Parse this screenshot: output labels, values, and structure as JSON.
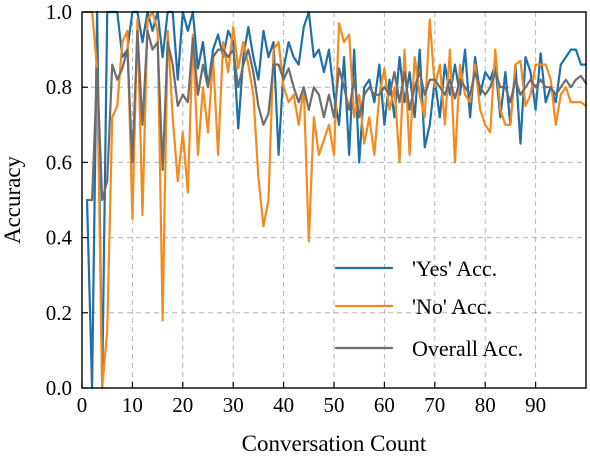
{
  "chart_data": {
    "type": "line",
    "xlabel": "Conversation Count",
    "ylabel": "Accuracy",
    "xlim": [
      0,
      100
    ],
    "ylim": [
      0,
      1
    ],
    "xticks": [
      0,
      10,
      20,
      30,
      40,
      50,
      60,
      70,
      80,
      90
    ],
    "yticks": [
      0.0,
      0.2,
      0.4,
      0.6,
      0.8,
      1.0
    ],
    "xtick_labels": [
      "0",
      "10",
      "20",
      "30",
      "40",
      "50",
      "60",
      "70",
      "80",
      "90"
    ],
    "ytick_labels": [
      "0.0",
      "0.2",
      "0.4",
      "0.6",
      "0.8",
      "1.0"
    ],
    "grid": true,
    "legend_position": "lower-right",
    "x": [
      1,
      2,
      3,
      4,
      5,
      6,
      7,
      8,
      9,
      10,
      11,
      12,
      13,
      14,
      15,
      16,
      17,
      18,
      19,
      20,
      21,
      22,
      23,
      24,
      25,
      26,
      27,
      28,
      29,
      30,
      31,
      32,
      33,
      34,
      35,
      36,
      37,
      38,
      39,
      40,
      41,
      42,
      43,
      44,
      45,
      46,
      47,
      48,
      49,
      50,
      51,
      52,
      53,
      54,
      55,
      56,
      57,
      58,
      59,
      60,
      61,
      62,
      63,
      64,
      65,
      66,
      67,
      68,
      69,
      70,
      71,
      72,
      73,
      74,
      75,
      76,
      77,
      78,
      79,
      80,
      81,
      82,
      83,
      84,
      85,
      86,
      87,
      88,
      89,
      90,
      91,
      92,
      93,
      94,
      95,
      96,
      97,
      98,
      99,
      100
    ],
    "series": [
      {
        "name": "'Yes' Acc.",
        "color": "#1f6fa8",
        "values": [
          0.5,
          0.0,
          1.0,
          0.0,
          1.0,
          1.0,
          1.0,
          0.88,
          0.9,
          1.0,
          1.0,
          0.92,
          1.0,
          0.95,
          1.0,
          0.88,
          1.0,
          1.0,
          0.82,
          1.0,
          0.95,
          1.0,
          0.85,
          0.92,
          0.8,
          0.9,
          0.94,
          0.88,
          0.95,
          0.92,
          0.69,
          0.88,
          0.96,
          0.88,
          0.82,
          0.95,
          0.88,
          0.92,
          0.62,
          0.85,
          0.92,
          0.88,
          0.86,
          0.96,
          1.0,
          0.88,
          0.9,
          0.84,
          0.9,
          0.78,
          0.7,
          0.88,
          0.62,
          0.9,
          0.6,
          0.8,
          0.82,
          0.76,
          0.86,
          0.7,
          0.82,
          0.72,
          0.88,
          0.76,
          0.84,
          0.72,
          0.9,
          0.64,
          0.7,
          0.82,
          0.72,
          0.86,
          0.78,
          0.86,
          0.78,
          0.9,
          0.72,
          0.88,
          0.78,
          0.84,
          0.82,
          0.86,
          0.72,
          0.84,
          0.7,
          0.86,
          0.65,
          0.88,
          0.84,
          0.74,
          0.89,
          0.76,
          0.8,
          0.76,
          0.86,
          0.88,
          0.9,
          0.9,
          0.86,
          0.86
        ]
      },
      {
        "name": "'No' Acc.",
        "color": "#f58a1f",
        "values": [
          1.0,
          1.0,
          0.85,
          0.0,
          0.15,
          0.72,
          0.75,
          0.92,
          0.95,
          0.45,
          0.98,
          0.46,
          0.98,
          1.0,
          0.95,
          0.18,
          0.95,
          0.72,
          0.55,
          0.68,
          0.52,
          0.94,
          0.62,
          0.8,
          0.68,
          0.88,
          0.62,
          0.92,
          0.84,
          0.96,
          0.85,
          0.92,
          0.86,
          0.78,
          0.56,
          0.43,
          0.5,
          0.9,
          0.92,
          0.8,
          0.76,
          0.78,
          0.7,
          0.8,
          0.39,
          0.72,
          0.62,
          0.66,
          0.7,
          0.62,
          0.97,
          0.92,
          0.94,
          0.72,
          0.78,
          0.65,
          0.72,
          0.62,
          0.78,
          0.85,
          0.74,
          0.8,
          0.6,
          0.9,
          0.62,
          0.88,
          0.78,
          0.72,
          0.98,
          0.8,
          0.86,
          0.7,
          0.9,
          0.6,
          0.86,
          0.78,
          0.76,
          0.86,
          0.74,
          0.7,
          0.68,
          0.9,
          0.74,
          0.7,
          0.7,
          0.86,
          0.87,
          0.75,
          0.78,
          0.86,
          0.86,
          0.86,
          0.82,
          0.7,
          0.78,
          0.8,
          0.76,
          0.76,
          0.76,
          0.75
        ]
      },
      {
        "name": "Overall Acc.",
        "color": "#6d6d6d",
        "values": [
          0.5,
          0.5,
          0.85,
          0.5,
          0.55,
          0.86,
          0.82,
          0.85,
          0.9,
          0.6,
          0.95,
          0.7,
          0.95,
          0.9,
          0.92,
          0.58,
          0.92,
          0.86,
          0.75,
          0.78,
          0.76,
          0.93,
          0.78,
          0.86,
          0.8,
          0.88,
          0.9,
          0.9,
          0.88,
          0.9,
          0.8,
          0.86,
          0.9,
          0.84,
          0.75,
          0.7,
          0.73,
          0.86,
          0.86,
          0.82,
          0.85,
          0.8,
          0.76,
          0.8,
          0.74,
          0.8,
          0.78,
          0.72,
          0.78,
          0.72,
          0.85,
          0.8,
          0.74,
          0.82,
          0.72,
          0.78,
          0.8,
          0.78,
          0.78,
          0.8,
          0.78,
          0.84,
          0.76,
          0.84,
          0.74,
          0.8,
          0.84,
          0.78,
          0.82,
          0.82,
          0.8,
          0.78,
          0.82,
          0.77,
          0.82,
          0.8,
          0.78,
          0.84,
          0.8,
          0.78,
          0.8,
          0.84,
          0.8,
          0.8,
          0.76,
          0.82,
          0.78,
          0.8,
          0.82,
          0.8,
          0.82,
          0.8,
          0.8,
          0.78,
          0.8,
          0.82,
          0.8,
          0.82,
          0.83,
          0.81
        ]
      }
    ]
  }
}
